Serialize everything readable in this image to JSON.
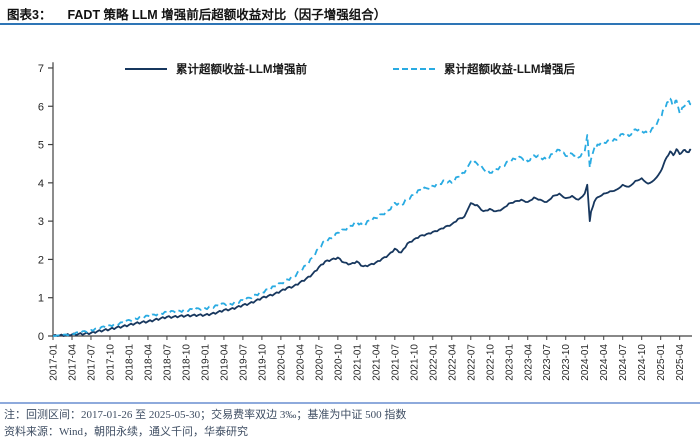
{
  "header": {
    "prefix": "图表3：",
    "title": "FADT 策略 LLM 增强前后超额收益对比（因子增强组合）"
  },
  "footnote": {
    "note": "注：回测区间：2017-01-26 至 2025-05-30；交易费率双边 3‰；基准为中证 500 指数",
    "source": "资料来源：Wind，朝阳永续，通义千问，华泰研究"
  },
  "colors": {
    "title_rule": "#2E75B6",
    "footer_rule": "#8EAADC",
    "axis": "#404040",
    "series_before": "#17375E",
    "series_after": "#29ABE2"
  },
  "chart_data": {
    "type": "line",
    "title": "FADT 策略 LLM 增强前后超额收益对比（因子增强组合）",
    "xlabel": "",
    "ylabel": "",
    "ylim": [
      0,
      7
    ],
    "y_ticks": [
      0,
      1,
      2,
      3,
      4,
      5,
      6,
      7
    ],
    "x_start": "2017-01",
    "x_end": "2025-05",
    "grid": false,
    "legend_position": "top-center",
    "x_tick_labels": [
      "2017-01",
      "2017-04",
      "2017-07",
      "2017-10",
      "2018-01",
      "2018-04",
      "2018-07",
      "2018-10",
      "2019-01",
      "2019-04",
      "2019-07",
      "2019-10",
      "2020-01",
      "2020-04",
      "2020-07",
      "2020-10",
      "2021-01",
      "2021-04",
      "2021-07",
      "2021-10",
      "2022-01",
      "2022-04",
      "2022-07",
      "2022-10",
      "2023-01",
      "2023-04",
      "2023-07",
      "2023-10",
      "2024-01",
      "2024-04",
      "2024-07",
      "2024-10",
      "2025-01",
      "2025-04"
    ],
    "series": [
      {
        "name": "累计超额收益-LLM增强前",
        "style": "solid",
        "color": "#17375E",
        "points": [
          [
            0,
            0
          ],
          [
            1,
            0.01
          ],
          [
            2,
            0.02
          ],
          [
            3,
            0.04
          ],
          [
            4,
            0.05
          ],
          [
            5,
            0.06
          ],
          [
            6,
            0.08
          ],
          [
            7,
            0.12
          ],
          [
            8,
            0.15
          ],
          [
            9,
            0.18
          ],
          [
            10,
            0.22
          ],
          [
            11,
            0.25
          ],
          [
            12,
            0.29
          ],
          [
            13,
            0.33
          ],
          [
            14,
            0.36
          ],
          [
            15,
            0.38
          ],
          [
            16,
            0.42
          ],
          [
            17,
            0.46
          ],
          [
            18,
            0.5
          ],
          [
            19,
            0.5
          ],
          [
            20,
            0.52
          ],
          [
            21,
            0.53
          ],
          [
            22,
            0.54
          ],
          [
            23,
            0.55
          ],
          [
            24,
            0.55
          ],
          [
            25,
            0.58
          ],
          [
            26,
            0.62
          ],
          [
            27,
            0.68
          ],
          [
            28,
            0.7
          ],
          [
            29,
            0.75
          ],
          [
            30,
            0.81
          ],
          [
            31,
            0.85
          ],
          [
            32,
            0.92
          ],
          [
            33,
            1.0
          ],
          [
            34,
            1.05
          ],
          [
            35,
            1.1
          ],
          [
            36,
            1.18
          ],
          [
            37,
            1.26
          ],
          [
            38,
            1.3
          ],
          [
            39,
            1.4
          ],
          [
            40,
            1.5
          ],
          [
            41,
            1.62
          ],
          [
            42,
            1.8
          ],
          [
            43,
            1.95
          ],
          [
            44,
            2.0
          ],
          [
            45,
            2.05
          ],
          [
            46,
            1.92
          ],
          [
            47,
            1.88
          ],
          [
            48,
            1.95
          ],
          [
            49,
            1.82
          ],
          [
            50,
            1.86
          ],
          [
            51,
            1.92
          ],
          [
            52,
            2.02
          ],
          [
            53,
            2.12
          ],
          [
            54,
            2.28
          ],
          [
            55,
            2.18
          ],
          [
            56,
            2.42
          ],
          [
            57,
            2.52
          ],
          [
            58,
            2.62
          ],
          [
            59,
            2.66
          ],
          [
            60,
            2.72
          ],
          [
            61,
            2.78
          ],
          [
            62,
            2.86
          ],
          [
            63,
            2.92
          ],
          [
            64,
            3.06
          ],
          [
            65,
            3.12
          ],
          [
            66,
            3.47
          ],
          [
            67,
            3.42
          ],
          [
            68,
            3.26
          ],
          [
            69,
            3.32
          ],
          [
            70,
            3.26
          ],
          [
            71,
            3.32
          ],
          [
            72,
            3.46
          ],
          [
            73,
            3.52
          ],
          [
            74,
            3.56
          ],
          [
            75,
            3.5
          ],
          [
            76,
            3.62
          ],
          [
            77,
            3.56
          ],
          [
            78,
            3.5
          ],
          [
            79,
            3.66
          ],
          [
            80,
            3.72
          ],
          [
            81,
            3.6
          ],
          [
            82,
            3.66
          ],
          [
            83,
            3.56
          ],
          [
            84,
            3.72
          ],
          [
            84.4,
            3.95
          ],
          [
            84.8,
            3.0
          ],
          [
            85,
            3.25
          ],
          [
            85.5,
            3.5
          ],
          [
            86,
            3.62
          ],
          [
            87,
            3.72
          ],
          [
            88,
            3.78
          ],
          [
            89,
            3.82
          ],
          [
            90,
            3.95
          ],
          [
            91,
            3.9
          ],
          [
            92,
            4.05
          ],
          [
            93,
            4.12
          ],
          [
            94,
            3.98
          ],
          [
            95,
            4.08
          ],
          [
            96,
            4.3
          ],
          [
            96.5,
            4.5
          ],
          [
            97,
            4.68
          ],
          [
            97.5,
            4.82
          ],
          [
            98,
            4.72
          ],
          [
            98.5,
            4.88
          ],
          [
            99,
            4.75
          ],
          [
            99.6,
            4.85
          ],
          [
            100.3,
            4.8
          ],
          [
            100.8,
            4.86
          ]
        ]
      },
      {
        "name": "累计超额收益-LLM增强后",
        "style": "dashed",
        "color": "#29ABE2",
        "points": [
          [
            0,
            0
          ],
          [
            1,
            0.02
          ],
          [
            2,
            0.04
          ],
          [
            3,
            0.07
          ],
          [
            4,
            0.1
          ],
          [
            5,
            0.13
          ],
          [
            6,
            0.16
          ],
          [
            7,
            0.2
          ],
          [
            8,
            0.25
          ],
          [
            9,
            0.28
          ],
          [
            10,
            0.32
          ],
          [
            11,
            0.36
          ],
          [
            12,
            0.42
          ],
          [
            13,
            0.46
          ],
          [
            14,
            0.5
          ],
          [
            15,
            0.53
          ],
          [
            16,
            0.56
          ],
          [
            17,
            0.6
          ],
          [
            18,
            0.63
          ],
          [
            19,
            0.65
          ],
          [
            20,
            0.66
          ],
          [
            21,
            0.68
          ],
          [
            22,
            0.7
          ],
          [
            23,
            0.72
          ],
          [
            24,
            0.73
          ],
          [
            25,
            0.76
          ],
          [
            26,
            0.8
          ],
          [
            27,
            0.85
          ],
          [
            28,
            0.84
          ],
          [
            29,
            0.88
          ],
          [
            30,
            0.94
          ],
          [
            31,
            1.0
          ],
          [
            32,
            1.08
          ],
          [
            33,
            1.15
          ],
          [
            34,
            1.22
          ],
          [
            35,
            1.3
          ],
          [
            36,
            1.38
          ],
          [
            37,
            1.48
          ],
          [
            38,
            1.55
          ],
          [
            39,
            1.7
          ],
          [
            40,
            1.85
          ],
          [
            41,
            2.05
          ],
          [
            42,
            2.3
          ],
          [
            43,
            2.5
          ],
          [
            44,
            2.55
          ],
          [
            45,
            2.7
          ],
          [
            46,
            2.78
          ],
          [
            47,
            2.88
          ],
          [
            48,
            2.98
          ],
          [
            49,
            2.88
          ],
          [
            50,
            3.02
          ],
          [
            51,
            3.08
          ],
          [
            52,
            3.18
          ],
          [
            53,
            3.28
          ],
          [
            54,
            3.48
          ],
          [
            55,
            3.42
          ],
          [
            56,
            3.58
          ],
          [
            57,
            3.68
          ],
          [
            58,
            3.82
          ],
          [
            59,
            3.86
          ],
          [
            60,
            3.92
          ],
          [
            61,
            3.97
          ],
          [
            62,
            4.06
          ],
          [
            63,
            4.0
          ],
          [
            64,
            4.16
          ],
          [
            65,
            4.26
          ],
          [
            66,
            4.56
          ],
          [
            67,
            4.5
          ],
          [
            68,
            4.36
          ],
          [
            69,
            4.26
          ],
          [
            70,
            4.36
          ],
          [
            71,
            4.42
          ],
          [
            72,
            4.56
          ],
          [
            73,
            4.62
          ],
          [
            74,
            4.66
          ],
          [
            75,
            4.56
          ],
          [
            76,
            4.72
          ],
          [
            77,
            4.66
          ],
          [
            78,
            4.6
          ],
          [
            79,
            4.76
          ],
          [
            80,
            4.86
          ],
          [
            81,
            4.7
          ],
          [
            82,
            4.76
          ],
          [
            83,
            4.66
          ],
          [
            84,
            4.82
          ],
          [
            84.4,
            5.25
          ],
          [
            84.8,
            4.4
          ],
          [
            85,
            4.62
          ],
          [
            85.5,
            4.9
          ],
          [
            86,
            5.0
          ],
          [
            87,
            5.05
          ],
          [
            88,
            5.08
          ],
          [
            89,
            5.12
          ],
          [
            90,
            5.28
          ],
          [
            91,
            5.22
          ],
          [
            92,
            5.4
          ],
          [
            93,
            5.35
          ],
          [
            94,
            5.28
          ],
          [
            95,
            5.45
          ],
          [
            96,
            5.7
          ],
          [
            96.5,
            5.92
          ],
          [
            97,
            6.1
          ],
          [
            97.5,
            6.2
          ],
          [
            98,
            6.02
          ],
          [
            98.5,
            6.15
          ],
          [
            99,
            5.82
          ],
          [
            99.6,
            5.98
          ],
          [
            100.3,
            6.12
          ],
          [
            100.8,
            6.05
          ]
        ]
      }
    ]
  }
}
